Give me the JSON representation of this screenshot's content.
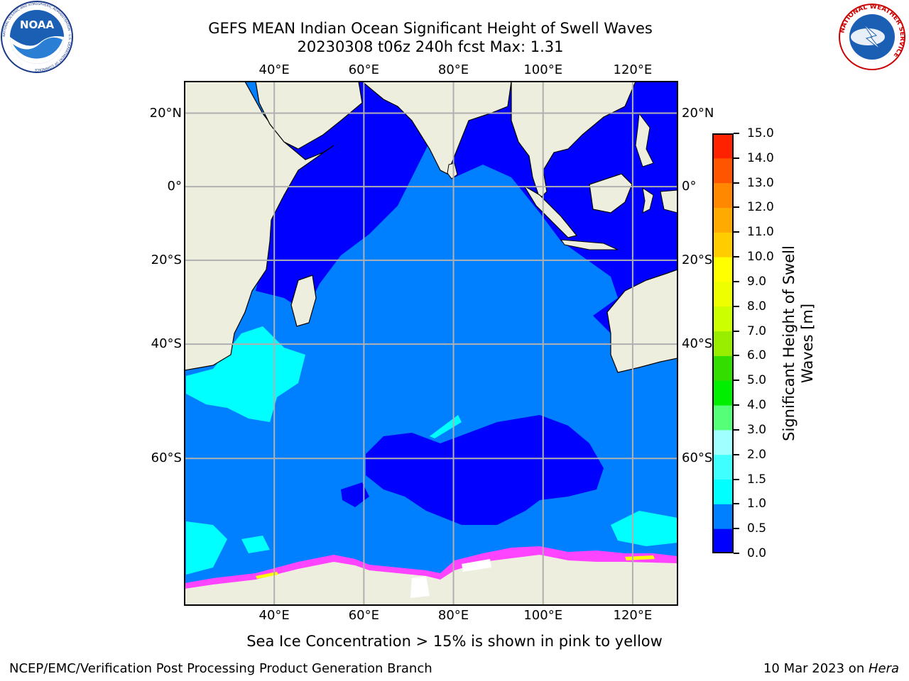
{
  "header": {
    "title_line1": "GEFS MEAN Indian Ocean Significant Height of Swell Waves",
    "title_line2": "20230308 t06z 240h fcst   Max: 1.31"
  },
  "logos": {
    "noaa": {
      "text": "NOAA",
      "ring_text": "NATIONAL OCEANIC AND ATMOSPHERIC ADMINISTRATION · U.S. DEPARTMENT OF COMMERCE"
    },
    "nws": {
      "ring_text": "NATIONAL WEATHER SERVICE"
    }
  },
  "map": {
    "lon_ticks": [
      "40°E",
      "60°E",
      "80°E",
      "100°E",
      "120°E"
    ],
    "lon_values": [
      40,
      60,
      80,
      100,
      120
    ],
    "lat_ticks": [
      "20°N",
      "0°",
      "20°S",
      "40°S",
      "60°S"
    ],
    "lat_values": [
      20,
      0,
      -20,
      -40,
      -60
    ],
    "extent": {
      "lon_min": 20,
      "lon_max": 130,
      "lat_min": -75,
      "lat_max": 28
    },
    "colors": {
      "land": "#eeeedf",
      "grid": "#b0b0b0",
      "ocean_low": "#0000ff",
      "ocean_mid": "#0080ff",
      "ocean_high": "#00ffff",
      "sea_ice_pink": "#ff44ff",
      "sea_ice_yellow": "#ffff00"
    }
  },
  "colorbar": {
    "label": "Significant Height of Swell Waves [m]",
    "label_line1": "Significant Height of Swell",
    "label_line2": "Waves [m]",
    "ticks": [
      "0.0",
      "0.5",
      "1.0",
      "1.5",
      "2.0",
      "3.0",
      "4.0",
      "5.0",
      "6.0",
      "7.0",
      "8.0",
      "9.0",
      "10.0",
      "11.0",
      "12.0",
      "13.0",
      "14.0",
      "15.0"
    ],
    "colors": [
      "#0000ff",
      "#0080ff",
      "#00ffff",
      "#40ffff",
      "#a0ffff",
      "#55ff77",
      "#00ee00",
      "#33dd00",
      "#99ee00",
      "#ccff00",
      "#eeff00",
      "#ffff00",
      "#ffcc00",
      "#ffaa00",
      "#ff8800",
      "#ff5500",
      "#ff2200"
    ]
  },
  "footer": {
    "note": "Sea Ice Concentration > 15% is shown in pink to yellow",
    "credit_left": "NCEP/EMC/Verification Post Processing Product Generation Branch",
    "date": "10 Mar 2023 on ",
    "machine": "Hera"
  }
}
